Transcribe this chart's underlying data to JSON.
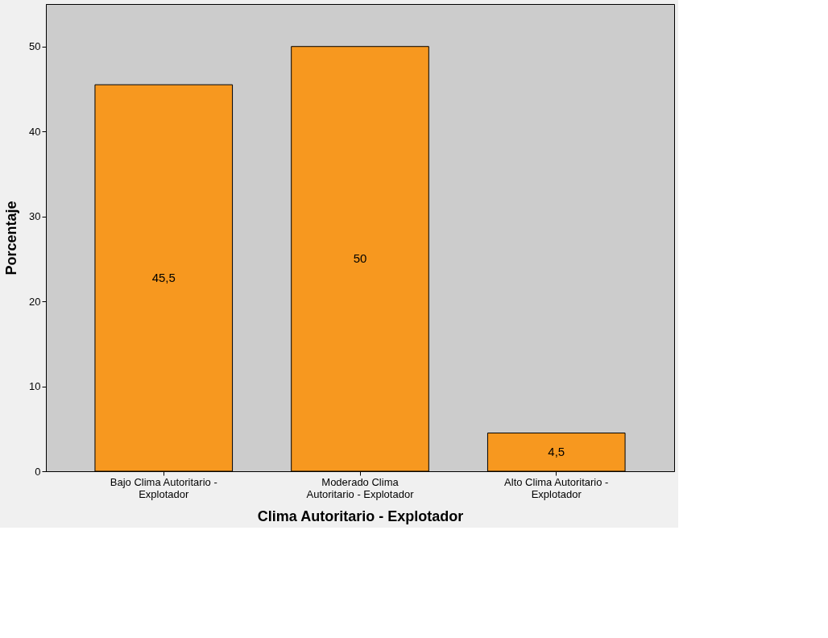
{
  "chart_data": {
    "type": "bar",
    "xlabel": "Clima Autoritario - Explotador",
    "ylabel": "Porcentaje",
    "categories": [
      "Bajo Clima Autoritario - Explotador",
      "Moderado Clima Autoritario - Explotador",
      "Alto Clima Autoritario - Explotador"
    ],
    "values": [
      45.5,
      50,
      4.5
    ],
    "value_labels": [
      "45,5",
      "50",
      "4,5"
    ],
    "color": "#f7981f",
    "ylim": [
      0,
      55
    ],
    "yticks": [
      0,
      10,
      20,
      30,
      40,
      50
    ],
    "grid": false
  }
}
